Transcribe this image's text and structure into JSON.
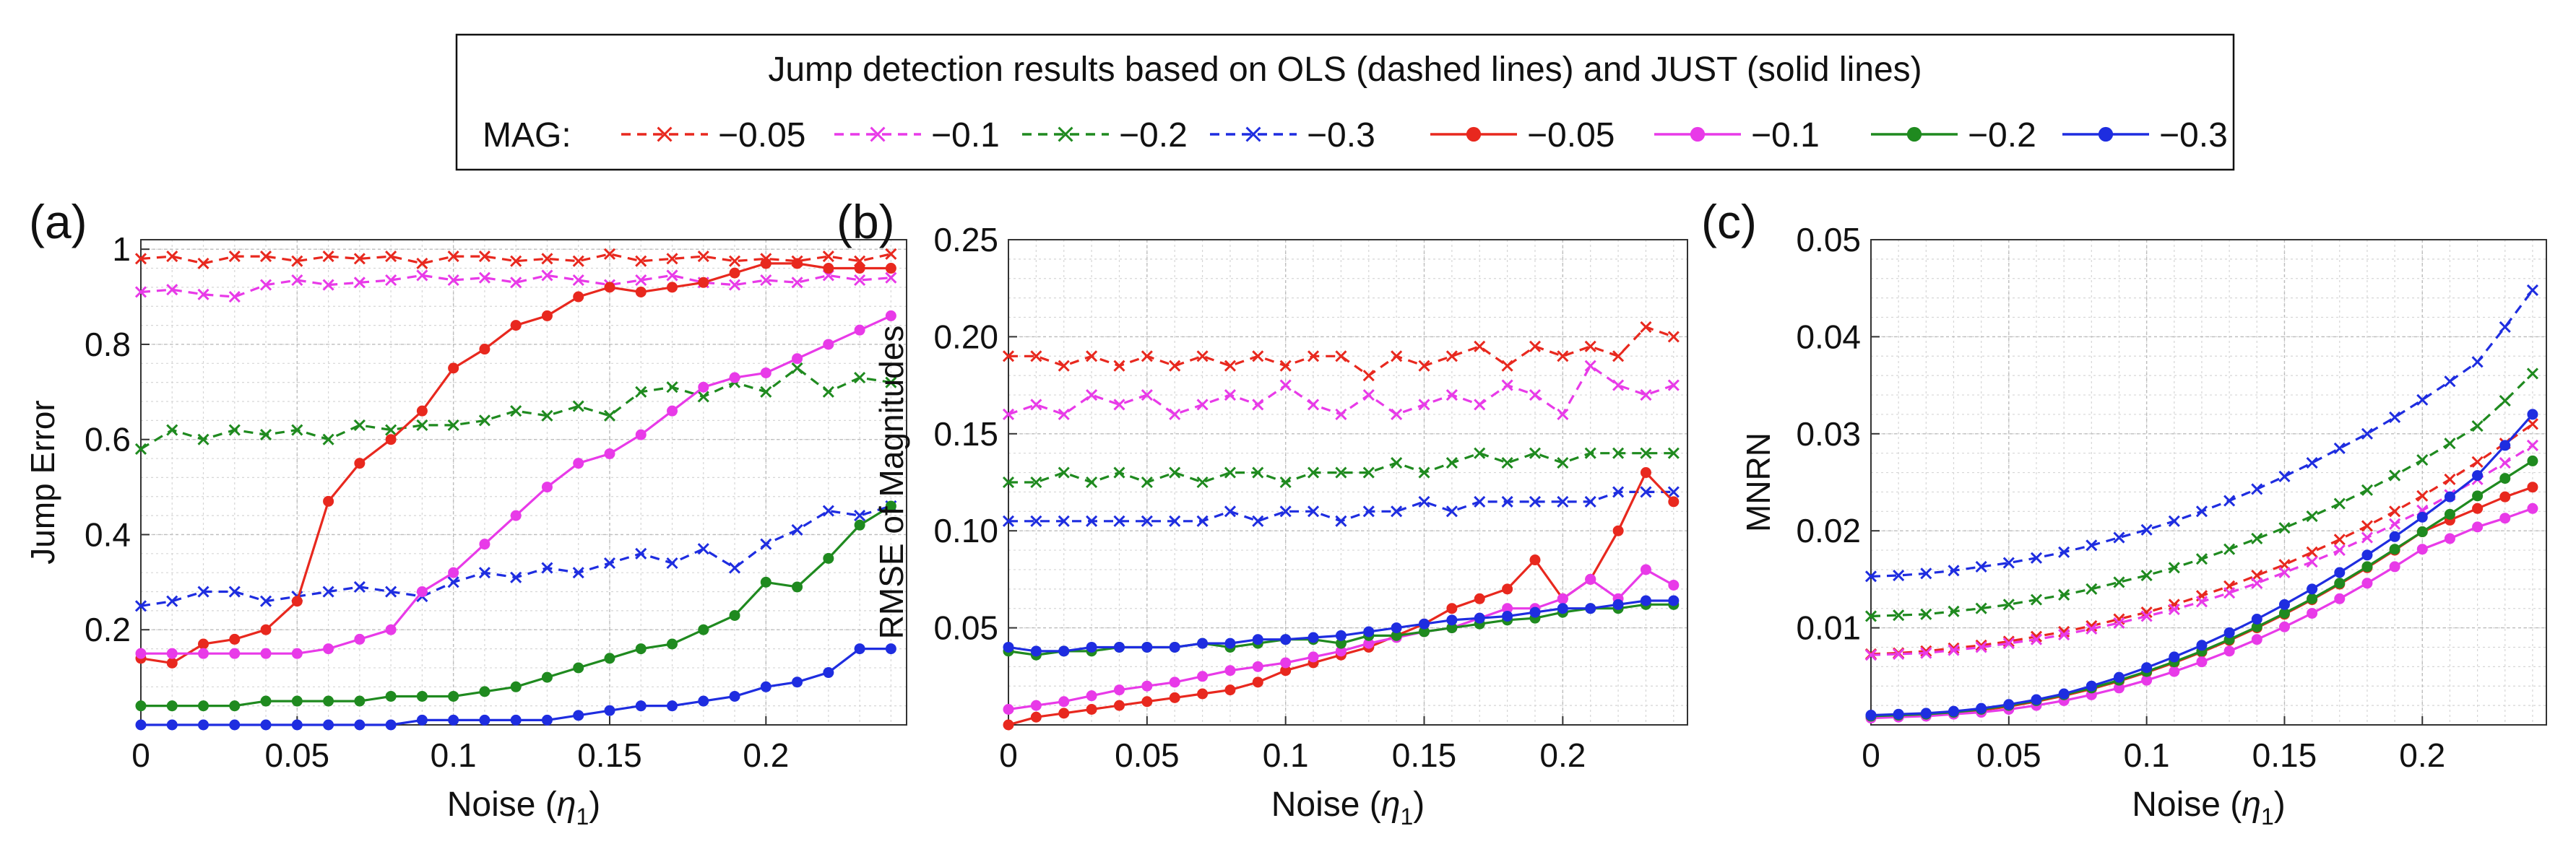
{
  "legend": {
    "title": "Jump detection results based on OLS (dashed lines) and JUST (solid lines)",
    "mag_label": "MAG:",
    "entries": [
      {
        "label": "−0.05",
        "color": "#e8281e",
        "style": "dashed"
      },
      {
        "label": "−0.1",
        "color": "#e83ae8",
        "style": "dashed"
      },
      {
        "label": "−0.2",
        "color": "#1f8a1f",
        "style": "dashed"
      },
      {
        "label": "−0.3",
        "color": "#1e2de0",
        "style": "dashed"
      },
      {
        "label": "−0.05",
        "color": "#e8281e",
        "style": "solid"
      },
      {
        "label": "−0.1",
        "color": "#e83ae8",
        "style": "solid"
      },
      {
        "label": "−0.2",
        "color": "#1f8a1f",
        "style": "solid"
      },
      {
        "label": "−0.3",
        "color": "#1e2de0",
        "style": "solid"
      }
    ]
  },
  "colors": {
    "red": "#e8281e",
    "magenta": "#e83ae8",
    "green": "#1f8a1f",
    "blue": "#1e2de0"
  },
  "chart_data": [
    {
      "panel": "(a)",
      "type": "line",
      "xlabel_main": "Noise (",
      "xlabel_sym": "η",
      "xlabel_sub": "1",
      "xlabel_close": ")",
      "ylabel": "Jump Error",
      "xlim": [
        0,
        0.245
      ],
      "ylim": [
        0,
        1.02
      ],
      "xticks": [
        0,
        0.05,
        0.1,
        0.15,
        0.2
      ],
      "xtick_labels": [
        "0",
        "0.05",
        "0.1",
        "0.15",
        "0.2"
      ],
      "yticks": [
        0.2,
        0.4,
        0.6,
        0.8,
        1
      ],
      "ytick_labels": [
        "0.2",
        "0.4",
        "0.6",
        "0.8",
        "1"
      ],
      "grid": true,
      "x": [
        0,
        0.01,
        0.02,
        0.03,
        0.04,
        0.05,
        0.06,
        0.07,
        0.08,
        0.09,
        0.1,
        0.11,
        0.12,
        0.13,
        0.14,
        0.15,
        0.16,
        0.17,
        0.18,
        0.19,
        0.2,
        0.21,
        0.22,
        0.23,
        0.24
      ],
      "series": [
        {
          "name": "OLS −0.05",
          "color": "red",
          "style": "dashed",
          "values": [
            0.98,
            0.985,
            0.97,
            0.985,
            0.985,
            0.975,
            0.985,
            0.98,
            0.985,
            0.97,
            0.985,
            0.985,
            0.975,
            0.98,
            0.975,
            0.99,
            0.975,
            0.98,
            0.985,
            0.975,
            0.98,
            0.975,
            0.985,
            0.975,
            0.99
          ]
        },
        {
          "name": "OLS −0.1",
          "color": "magenta",
          "style": "dashed",
          "values": [
            0.91,
            0.915,
            0.905,
            0.9,
            0.925,
            0.935,
            0.925,
            0.93,
            0.935,
            0.945,
            0.935,
            0.94,
            0.93,
            0.945,
            0.935,
            0.925,
            0.935,
            0.945,
            0.93,
            0.925,
            0.935,
            0.93,
            0.945,
            0.935,
            0.94
          ]
        },
        {
          "name": "OLS −0.2",
          "color": "green",
          "style": "dashed",
          "values": [
            0.58,
            0.62,
            0.6,
            0.62,
            0.61,
            0.62,
            0.6,
            0.63,
            0.62,
            0.63,
            0.63,
            0.64,
            0.66,
            0.65,
            0.67,
            0.65,
            0.7,
            0.71,
            0.69,
            0.72,
            0.7,
            0.75,
            0.7,
            0.73,
            0.72
          ]
        },
        {
          "name": "OLS −0.3",
          "color": "blue",
          "style": "dashed",
          "values": [
            0.25,
            0.26,
            0.28,
            0.28,
            0.26,
            0.27,
            0.28,
            0.29,
            0.28,
            0.27,
            0.3,
            0.32,
            0.31,
            0.33,
            0.32,
            0.34,
            0.36,
            0.34,
            0.37,
            0.33,
            0.38,
            0.41,
            0.45,
            0.44,
            0.46
          ]
        },
        {
          "name": "JUST −0.05",
          "color": "red",
          "style": "solid",
          "values": [
            0.14,
            0.13,
            0.17,
            0.18,
            0.2,
            0.26,
            0.47,
            0.55,
            0.6,
            0.66,
            0.75,
            0.79,
            0.84,
            0.86,
            0.9,
            0.92,
            0.91,
            0.92,
            0.93,
            0.95,
            0.97,
            0.97,
            0.96,
            0.96,
            0.96
          ]
        },
        {
          "name": "JUST −0.1",
          "color": "magenta",
          "style": "solid",
          "values": [
            0.15,
            0.15,
            0.15,
            0.15,
            0.15,
            0.15,
            0.16,
            0.18,
            0.2,
            0.28,
            0.32,
            0.38,
            0.44,
            0.5,
            0.55,
            0.57,
            0.61,
            0.66,
            0.71,
            0.73,
            0.74,
            0.77,
            0.8,
            0.83,
            0.86
          ]
        },
        {
          "name": "JUST −0.2",
          "color": "green",
          "style": "solid",
          "values": [
            0.04,
            0.04,
            0.04,
            0.04,
            0.05,
            0.05,
            0.05,
            0.05,
            0.06,
            0.06,
            0.06,
            0.07,
            0.08,
            0.1,
            0.12,
            0.14,
            0.16,
            0.17,
            0.2,
            0.23,
            0.3,
            0.29,
            0.35,
            0.42,
            0.46
          ]
        },
        {
          "name": "JUST −0.3",
          "color": "blue",
          "style": "solid",
          "values": [
            0.0,
            0.0,
            0.0,
            0.0,
            0.0,
            0.0,
            0.0,
            0.0,
            0.0,
            0.01,
            0.01,
            0.01,
            0.01,
            0.01,
            0.02,
            0.03,
            0.04,
            0.04,
            0.05,
            0.06,
            0.08,
            0.09,
            0.11,
            0.16,
            0.16
          ]
        }
      ]
    },
    {
      "panel": "(b)",
      "type": "line",
      "xlabel_main": "Noise (",
      "xlabel_sym": "η",
      "xlabel_sub": "1",
      "xlabel_close": ")",
      "ylabel": "RMSE of Magnitudes",
      "xlim": [
        0,
        0.245
      ],
      "ylim": [
        0,
        0.25
      ],
      "xticks": [
        0,
        0.05,
        0.1,
        0.15,
        0.2
      ],
      "xtick_labels": [
        "0",
        "0.05",
        "0.1",
        "0.15",
        "0.2"
      ],
      "yticks": [
        0.05,
        0.1,
        0.15,
        0.2,
        0.25
      ],
      "ytick_labels": [
        "0.05",
        "0.10",
        "0.15",
        "0.20",
        "0.25"
      ],
      "grid": true,
      "x": [
        0,
        0.01,
        0.02,
        0.03,
        0.04,
        0.05,
        0.06,
        0.07,
        0.08,
        0.09,
        0.1,
        0.11,
        0.12,
        0.13,
        0.14,
        0.15,
        0.16,
        0.17,
        0.18,
        0.19,
        0.2,
        0.21,
        0.22,
        0.23,
        0.24
      ],
      "series": [
        {
          "name": "OLS −0.05",
          "color": "red",
          "style": "dashed",
          "values": [
            0.19,
            0.19,
            0.185,
            0.19,
            0.185,
            0.19,
            0.185,
            0.19,
            0.185,
            0.19,
            0.185,
            0.19,
            0.19,
            0.18,
            0.19,
            0.185,
            0.19,
            0.195,
            0.185,
            0.195,
            0.19,
            0.195,
            0.19,
            0.205,
            0.2
          ]
        },
        {
          "name": "OLS −0.1",
          "color": "magenta",
          "style": "dashed",
          "values": [
            0.16,
            0.165,
            0.16,
            0.17,
            0.165,
            0.17,
            0.16,
            0.165,
            0.17,
            0.165,
            0.175,
            0.165,
            0.16,
            0.17,
            0.16,
            0.165,
            0.17,
            0.165,
            0.175,
            0.17,
            0.16,
            0.185,
            0.175,
            0.17,
            0.175
          ]
        },
        {
          "name": "OLS −0.2",
          "color": "green",
          "style": "dashed",
          "values": [
            0.125,
            0.125,
            0.13,
            0.125,
            0.13,
            0.125,
            0.13,
            0.125,
            0.13,
            0.13,
            0.125,
            0.13,
            0.13,
            0.13,
            0.135,
            0.13,
            0.135,
            0.14,
            0.135,
            0.14,
            0.135,
            0.14,
            0.14,
            0.14,
            0.14
          ]
        },
        {
          "name": "OLS −0.3",
          "color": "blue",
          "style": "dashed",
          "values": [
            0.105,
            0.105,
            0.105,
            0.105,
            0.105,
            0.105,
            0.105,
            0.105,
            0.11,
            0.105,
            0.11,
            0.11,
            0.105,
            0.11,
            0.11,
            0.115,
            0.11,
            0.115,
            0.115,
            0.115,
            0.115,
            0.115,
            0.12,
            0.12,
            0.12
          ]
        },
        {
          "name": "JUST −0.05",
          "color": "red",
          "style": "solid",
          "values": [
            0.0,
            0.004,
            0.006,
            0.008,
            0.01,
            0.012,
            0.014,
            0.016,
            0.018,
            0.022,
            0.028,
            0.032,
            0.036,
            0.04,
            0.046,
            0.052,
            0.06,
            0.065,
            0.07,
            0.085,
            0.065,
            0.075,
            0.1,
            0.13,
            0.115
          ]
        },
        {
          "name": "JUST −0.1",
          "color": "magenta",
          "style": "solid",
          "values": [
            0.008,
            0.01,
            0.012,
            0.015,
            0.018,
            0.02,
            0.022,
            0.025,
            0.028,
            0.03,
            0.032,
            0.035,
            0.038,
            0.042,
            0.045,
            0.048,
            0.05,
            0.055,
            0.06,
            0.06,
            0.065,
            0.075,
            0.065,
            0.08,
            0.072
          ]
        },
        {
          "name": "JUST −0.2",
          "color": "green",
          "style": "solid",
          "values": [
            0.038,
            0.036,
            0.038,
            0.038,
            0.04,
            0.04,
            0.04,
            0.042,
            0.04,
            0.042,
            0.044,
            0.044,
            0.042,
            0.046,
            0.046,
            0.048,
            0.05,
            0.052,
            0.054,
            0.055,
            0.058,
            0.06,
            0.06,
            0.062,
            0.062
          ]
        },
        {
          "name": "JUST −0.3",
          "color": "blue",
          "style": "solid",
          "values": [
            0.04,
            0.038,
            0.038,
            0.04,
            0.04,
            0.04,
            0.04,
            0.042,
            0.042,
            0.044,
            0.044,
            0.045,
            0.046,
            0.048,
            0.05,
            0.052,
            0.054,
            0.055,
            0.056,
            0.058,
            0.06,
            0.06,
            0.062,
            0.064,
            0.064
          ]
        }
      ]
    },
    {
      "panel": "(c)",
      "type": "line",
      "xlabel_main": "Noise (",
      "xlabel_sym": "η",
      "xlabel_sub": "1",
      "xlabel_close": ")",
      "ylabel": "MNRN",
      "xlim": [
        0,
        0.245
      ],
      "ylim": [
        0,
        0.05
      ],
      "xticks": [
        0,
        0.05,
        0.1,
        0.15,
        0.2
      ],
      "xtick_labels": [
        "0",
        "0.05",
        "0.1",
        "0.15",
        "0.2"
      ],
      "yticks": [
        0.01,
        0.02,
        0.03,
        0.04,
        0.05
      ],
      "ytick_labels": [
        "0.01",
        "0.02",
        "0.03",
        "0.04",
        "0.05"
      ],
      "grid": true,
      "x": [
        0,
        0.01,
        0.02,
        0.03,
        0.04,
        0.05,
        0.06,
        0.07,
        0.08,
        0.09,
        0.1,
        0.11,
        0.12,
        0.13,
        0.14,
        0.15,
        0.16,
        0.17,
        0.18,
        0.19,
        0.2,
        0.21,
        0.22,
        0.23,
        0.24
      ],
      "series": [
        {
          "name": "OLS −0.05",
          "color": "red",
          "style": "dashed",
          "values": [
            0.0073,
            0.0074,
            0.0076,
            0.0079,
            0.0082,
            0.0086,
            0.0091,
            0.0096,
            0.0102,
            0.0109,
            0.0116,
            0.0124,
            0.0133,
            0.0143,
            0.0154,
            0.0165,
            0.0178,
            0.0191,
            0.0205,
            0.022,
            0.0236,
            0.0253,
            0.0271,
            0.029,
            0.031
          ]
        },
        {
          "name": "OLS −0.1",
          "color": "magenta",
          "style": "dashed",
          "values": [
            0.0072,
            0.0073,
            0.0074,
            0.0077,
            0.008,
            0.0084,
            0.0088,
            0.0093,
            0.0099,
            0.0105,
            0.0112,
            0.0119,
            0.0127,
            0.0136,
            0.0146,
            0.0157,
            0.0168,
            0.018,
            0.0193,
            0.0207,
            0.0221,
            0.0237,
            0.0253,
            0.027,
            0.0288
          ]
        },
        {
          "name": "OLS −0.2",
          "color": "green",
          "style": "dashed",
          "values": [
            0.0112,
            0.0113,
            0.0114,
            0.0117,
            0.012,
            0.0124,
            0.0129,
            0.0134,
            0.014,
            0.0147,
            0.0154,
            0.0162,
            0.0171,
            0.0181,
            0.0192,
            0.0203,
            0.0215,
            0.0228,
            0.0242,
            0.0257,
            0.0273,
            0.029,
            0.0308,
            0.0334,
            0.0362
          ]
        },
        {
          "name": "OLS −0.3",
          "color": "blue",
          "style": "dashed",
          "values": [
            0.0153,
            0.0154,
            0.0156,
            0.0159,
            0.0163,
            0.0167,
            0.0172,
            0.0178,
            0.0185,
            0.0193,
            0.0201,
            0.021,
            0.022,
            0.0231,
            0.0243,
            0.0256,
            0.027,
            0.0285,
            0.03,
            0.0317,
            0.0335,
            0.0354,
            0.0374,
            0.041,
            0.0448
          ]
        },
        {
          "name": "JUST −0.05",
          "color": "red",
          "style": "solid",
          "values": [
            0.0008,
            0.0009,
            0.001,
            0.0012,
            0.0015,
            0.0019,
            0.0024,
            0.003,
            0.0037,
            0.0045,
            0.0054,
            0.0064,
            0.0075,
            0.0087,
            0.01,
            0.0114,
            0.0129,
            0.0145,
            0.0162,
            0.018,
            0.0199,
            0.0211,
            0.0223,
            0.0235,
            0.0245
          ]
        },
        {
          "name": "JUST −0.1",
          "color": "magenta",
          "style": "solid",
          "values": [
            0.0007,
            0.0008,
            0.0009,
            0.0011,
            0.0013,
            0.0016,
            0.002,
            0.0025,
            0.0031,
            0.0038,
            0.0046,
            0.0055,
            0.0065,
            0.0076,
            0.0088,
            0.0101,
            0.0115,
            0.013,
            0.0146,
            0.0163,
            0.0181,
            0.0192,
            0.0204,
            0.0213,
            0.0223
          ]
        },
        {
          "name": "JUST −0.2",
          "color": "green",
          "style": "solid",
          "values": [
            0.0009,
            0.001,
            0.0011,
            0.0013,
            0.0016,
            0.002,
            0.0025,
            0.0031,
            0.0038,
            0.0046,
            0.0055,
            0.0065,
            0.0076,
            0.0088,
            0.0101,
            0.0115,
            0.013,
            0.0146,
            0.0163,
            0.0181,
            0.0199,
            0.0217,
            0.0236,
            0.0254,
            0.0272
          ]
        },
        {
          "name": "JUST −0.3",
          "color": "blue",
          "style": "solid",
          "values": [
            0.001,
            0.0011,
            0.0012,
            0.0014,
            0.0017,
            0.0021,
            0.0026,
            0.0032,
            0.004,
            0.0049,
            0.0059,
            0.007,
            0.0082,
            0.0095,
            0.0109,
            0.0124,
            0.014,
            0.0157,
            0.0175,
            0.0194,
            0.0214,
            0.0235,
            0.0257,
            0.0288,
            0.032
          ]
        }
      ]
    }
  ]
}
